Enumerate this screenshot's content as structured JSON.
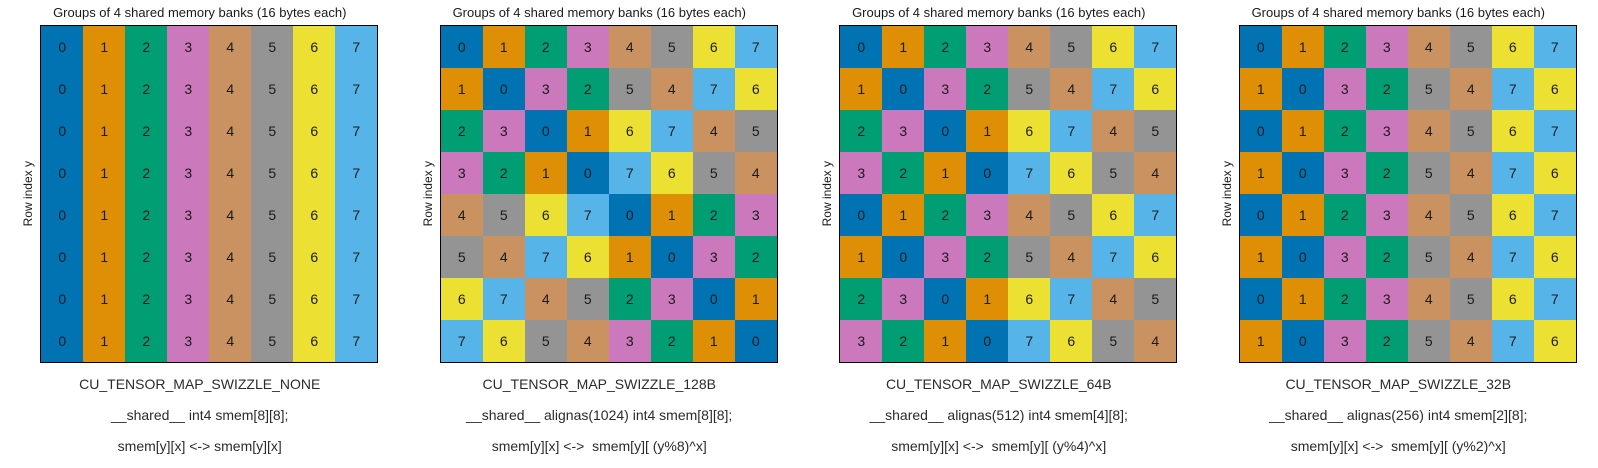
{
  "palette": {
    "0": "#0173b2",
    "1": "#de8f05",
    "2": "#029e73",
    "3": "#cc78bc",
    "4": "#ca9161",
    "5": "#949494",
    "6": "#ece133",
    "7": "#56b4e9"
  },
  "cell_text_color": "#1a1a1a",
  "chart_data": [
    {
      "type": "heatmap",
      "title": "Groups of 4 shared memory banks (16 bytes each)",
      "ylabel": "Row index y",
      "legend_position": "none",
      "grid_values": [
        [
          0,
          1,
          2,
          3,
          4,
          5,
          6,
          7
        ],
        [
          0,
          1,
          2,
          3,
          4,
          5,
          6,
          7
        ],
        [
          0,
          1,
          2,
          3,
          4,
          5,
          6,
          7
        ],
        [
          0,
          1,
          2,
          3,
          4,
          5,
          6,
          7
        ],
        [
          0,
          1,
          2,
          3,
          4,
          5,
          6,
          7
        ],
        [
          0,
          1,
          2,
          3,
          4,
          5,
          6,
          7
        ],
        [
          0,
          1,
          2,
          3,
          4,
          5,
          6,
          7
        ],
        [
          0,
          1,
          2,
          3,
          4,
          5,
          6,
          7
        ]
      ],
      "caption": [
        "CU_TENSOR_MAP_SWIZZLE_NONE",
        "__shared__ int4 smem[8][8];",
        "smem[y][x] <-> smem[y][x]"
      ]
    },
    {
      "type": "heatmap",
      "title": "Groups of 4 shared memory banks (16 bytes each)",
      "ylabel": "Row index y",
      "legend_position": "none",
      "grid_values": [
        [
          0,
          1,
          2,
          3,
          4,
          5,
          6,
          7
        ],
        [
          1,
          0,
          3,
          2,
          5,
          4,
          7,
          6
        ],
        [
          2,
          3,
          0,
          1,
          6,
          7,
          4,
          5
        ],
        [
          3,
          2,
          1,
          0,
          7,
          6,
          5,
          4
        ],
        [
          4,
          5,
          6,
          7,
          0,
          1,
          2,
          3
        ],
        [
          5,
          4,
          7,
          6,
          1,
          0,
          3,
          2
        ],
        [
          6,
          7,
          4,
          5,
          2,
          3,
          0,
          1
        ],
        [
          7,
          6,
          5,
          4,
          3,
          2,
          1,
          0
        ]
      ],
      "caption": [
        "CU_TENSOR_MAP_SWIZZLE_128B",
        "__shared__ alignas(1024) int4 smem[8][8];",
        "smem[y][x] <->  smem[y][ (y%8)^x]"
      ]
    },
    {
      "type": "heatmap",
      "title": "Groups of 4 shared memory banks (16 bytes each)",
      "ylabel": "Row index y",
      "legend_position": "none",
      "grid_values": [
        [
          0,
          1,
          2,
          3,
          4,
          5,
          6,
          7
        ],
        [
          1,
          0,
          3,
          2,
          5,
          4,
          7,
          6
        ],
        [
          2,
          3,
          0,
          1,
          6,
          7,
          4,
          5
        ],
        [
          3,
          2,
          1,
          0,
          7,
          6,
          5,
          4
        ],
        [
          0,
          1,
          2,
          3,
          4,
          5,
          6,
          7
        ],
        [
          1,
          0,
          3,
          2,
          5,
          4,
          7,
          6
        ],
        [
          2,
          3,
          0,
          1,
          6,
          7,
          4,
          5
        ],
        [
          3,
          2,
          1,
          0,
          7,
          6,
          5,
          4
        ]
      ],
      "caption": [
        "CU_TENSOR_MAP_SWIZZLE_64B",
        "__shared__ alignas(512) int4 smem[4][8];",
        "smem[y][x] <->  smem[y][ (y%4)^x]"
      ]
    },
    {
      "type": "heatmap",
      "title": "Groups of 4 shared memory banks (16 bytes each)",
      "ylabel": "Row index y",
      "legend_position": "none",
      "grid_values": [
        [
          0,
          1,
          2,
          3,
          4,
          5,
          6,
          7
        ],
        [
          1,
          0,
          3,
          2,
          5,
          4,
          7,
          6
        ],
        [
          0,
          1,
          2,
          3,
          4,
          5,
          6,
          7
        ],
        [
          1,
          0,
          3,
          2,
          5,
          4,
          7,
          6
        ],
        [
          0,
          1,
          2,
          3,
          4,
          5,
          6,
          7
        ],
        [
          1,
          0,
          3,
          2,
          5,
          4,
          7,
          6
        ],
        [
          0,
          1,
          2,
          3,
          4,
          5,
          6,
          7
        ],
        [
          1,
          0,
          3,
          2,
          5,
          4,
          7,
          6
        ]
      ],
      "caption": [
        "CU_TENSOR_MAP_SWIZZLE_32B",
        "__shared__ alignas(256) int4 smem[2][8];",
        "smem[y][x] <->  smem[y][ (y%2)^x]"
      ]
    }
  ]
}
